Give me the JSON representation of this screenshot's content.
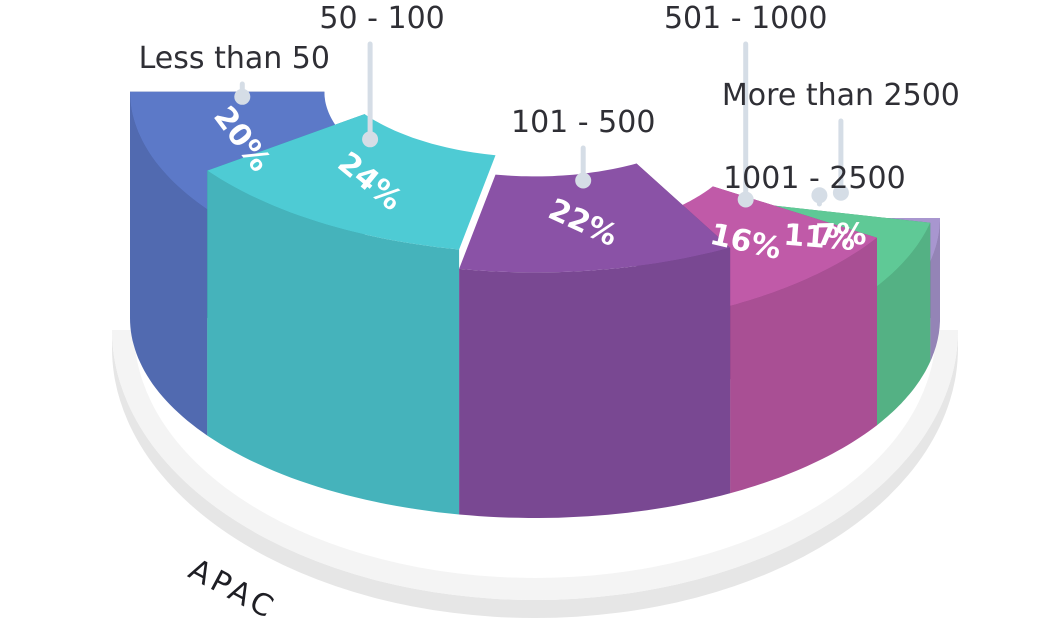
{
  "chart_data": {
    "type": "pie",
    "style": "3d-half-ring",
    "region": "APAC",
    "categories": [
      "Less than 50",
      "50 - 100",
      "101 - 500",
      "501 - 1000",
      "1001 - 2500",
      "More than 2500"
    ],
    "values": [
      20,
      24,
      22,
      16,
      11,
      7
    ],
    "value_labels": [
      "20%",
      "24%",
      "22%",
      "16%",
      "11%",
      "7%"
    ],
    "colors": [
      "#5c79c8",
      "#4ecbd4",
      "#8a52a6",
      "#c05aa8",
      "#5fc996",
      "#a896cf"
    ]
  }
}
